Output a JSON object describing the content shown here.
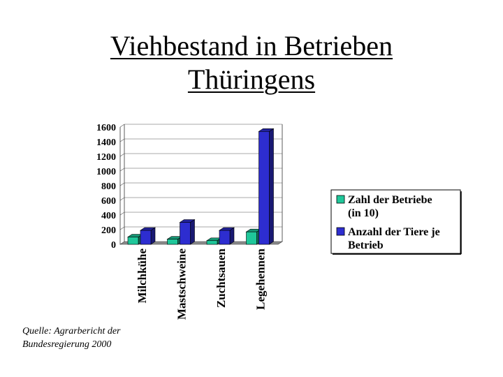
{
  "title_line1": "Viehbestand in Betrieben",
  "title_line2": "Thüringens",
  "source_line1": "Quelle: Agrarbericht der",
  "source_line2": "Bundesregierung 2000",
  "chart_data": {
    "type": "bar",
    "categories": [
      "Milchkühe",
      "Mastschweine",
      "Zuchtsauen",
      "Legehennen"
    ],
    "series": [
      {
        "name": "Zahl der Betriebe (in 10)",
        "legend_lines": [
          "Zahl der Betriebe",
          "(in 10)"
        ],
        "color": "#1fc79a",
        "values": [
          100,
          70,
          50,
          170
        ]
      },
      {
        "name": "Anzahl der Tiere je Betrieb",
        "legend_lines": [
          "Anzahl der Tiere je",
          "Betrieb"
        ],
        "color": "#2d2dd0",
        "values": [
          190,
          300,
          190,
          1540
        ]
      }
    ],
    "yticks": [
      0,
      200,
      400,
      600,
      800,
      1000,
      1200,
      1400,
      1600
    ],
    "ylim": [
      0,
      1600
    ],
    "grid": true,
    "legend_position": "right"
  }
}
